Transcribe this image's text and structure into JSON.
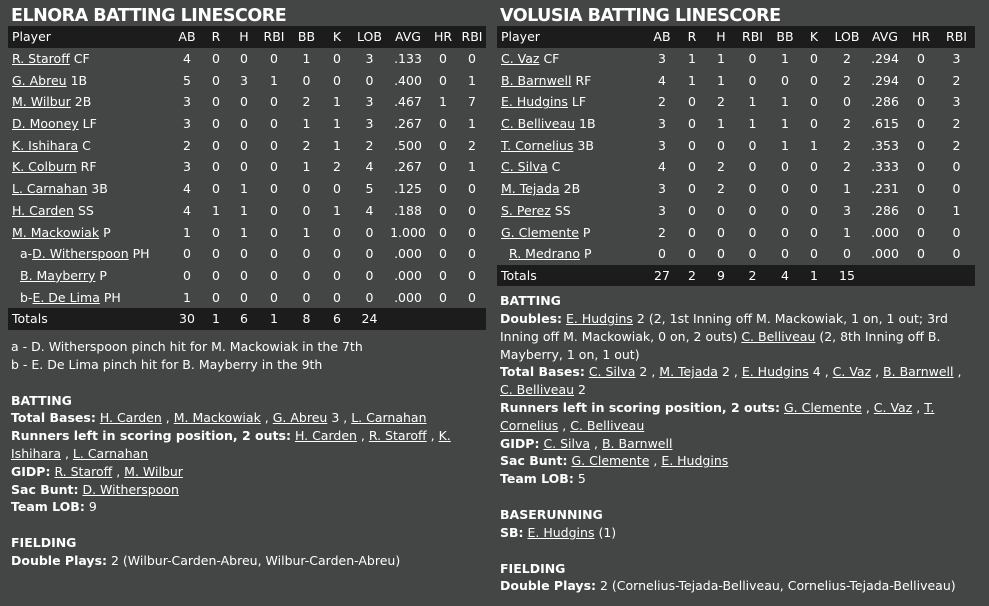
{
  "elnora": {
    "title": "ELNORA BATTING LINESCORE",
    "columns": [
      "Player",
      "AB",
      "R",
      "H",
      "RBI",
      "BB",
      "K",
      "LOB",
      "AVG",
      "HR",
      "RBI"
    ],
    "rows": [
      {
        "prefix": "",
        "name": "R. Staroff",
        "pos": " CF",
        "stats": [
          "4",
          "0",
          "0",
          "0",
          "1",
          "0",
          "3",
          ".133",
          "0",
          "0"
        ],
        "sub": false
      },
      {
        "prefix": "",
        "name": "G. Abreu",
        "pos": " 1B",
        "stats": [
          "5",
          "0",
          "3",
          "1",
          "0",
          "0",
          "0",
          ".400",
          "0",
          "1"
        ],
        "sub": false
      },
      {
        "prefix": "",
        "name": "M. Wilbur",
        "pos": " 2B",
        "stats": [
          "3",
          "0",
          "0",
          "0",
          "2",
          "1",
          "3",
          ".467",
          "1",
          "7"
        ],
        "sub": false
      },
      {
        "prefix": "",
        "name": "D. Mooney",
        "pos": " LF",
        "stats": [
          "3",
          "0",
          "0",
          "0",
          "1",
          "1",
          "3",
          ".267",
          "0",
          "1"
        ],
        "sub": false
      },
      {
        "prefix": "",
        "name": "K. Ishihara",
        "pos": " C",
        "stats": [
          "2",
          "0",
          "0",
          "0",
          "2",
          "1",
          "2",
          ".500",
          "0",
          "2"
        ],
        "sub": false
      },
      {
        "prefix": "",
        "name": "K. Colburn",
        "pos": " RF",
        "stats": [
          "3",
          "0",
          "0",
          "0",
          "1",
          "2",
          "4",
          ".267",
          "0",
          "1"
        ],
        "sub": false
      },
      {
        "prefix": "",
        "name": "L. Carnahan",
        "pos": " 3B",
        "stats": [
          "4",
          "0",
          "1",
          "0",
          "0",
          "0",
          "5",
          ".125",
          "0",
          "0"
        ],
        "sub": false
      },
      {
        "prefix": "",
        "name": "H. Carden",
        "pos": " SS",
        "stats": [
          "4",
          "1",
          "1",
          "0",
          "0",
          "1",
          "4",
          ".188",
          "0",
          "0"
        ],
        "sub": false
      },
      {
        "prefix": "",
        "name": "M. Mackowiak",
        "pos": " P",
        "stats": [
          "1",
          "0",
          "1",
          "0",
          "1",
          "0",
          "0",
          "1.000",
          "0",
          "0"
        ],
        "sub": false
      },
      {
        "prefix": "a-",
        "name": "D. Witherspoon",
        "pos": " PH",
        "stats": [
          "0",
          "0",
          "0",
          "0",
          "0",
          "0",
          "0",
          ".000",
          "0",
          "0"
        ],
        "sub": true
      },
      {
        "prefix": "",
        "name": "B. Mayberry",
        "pos": " P",
        "stats": [
          "0",
          "0",
          "0",
          "0",
          "0",
          "0",
          "0",
          ".000",
          "0",
          "0"
        ],
        "sub": true
      },
      {
        "prefix": "b-",
        "name": "E. De Lima",
        "pos": " PH",
        "stats": [
          "1",
          "0",
          "0",
          "0",
          "0",
          "0",
          "0",
          ".000",
          "0",
          "0"
        ],
        "sub": true
      }
    ],
    "totals": {
      "label": "Totals",
      "stats": [
        "30",
        "1",
        "6",
        "1",
        "8",
        "6",
        "24",
        "",
        "",
        ""
      ]
    },
    "notes": [
      "a - D. Witherspoon pinch hit for M. Mackowiak in the 7th",
      "b - E. De Lima pinch hit for B. Mayberry in the 9th"
    ],
    "batting": {
      "title": "BATTING",
      "total_bases_label": "Total Bases:",
      "tb1": "H. Carden",
      "tb2": "M. Mackowiak",
      "tb3": "G. Abreu",
      "tb3_count": " 3",
      "tb4": "L. Carnahan",
      "risp_label": "Runners left in scoring position, 2 outs:",
      "risp1": "H. Carden",
      "risp2": "R. Staroff",
      "risp3": "K. Ishihara",
      "risp4": "L. Carnahan",
      "gidp_label": "GIDP:",
      "gidp1": "R. Staroff",
      "gidp2": "M. Wilbur",
      "sac_label": "Sac Bunt:",
      "sac1": "D. Witherspoon",
      "lob_label": "Team LOB:",
      "lob_value": "9"
    },
    "fielding": {
      "title": "FIELDING",
      "dp_label": "Double Plays:",
      "dp_value": "2 (Wilbur-Carden-Abreu, Wilbur-Carden-Abreu)"
    }
  },
  "volusia": {
    "title": "VOLUSIA BATTING LINESCORE",
    "columns": [
      "Player",
      "AB",
      "R",
      "H",
      "RBI",
      "BB",
      "K",
      "LOB",
      "AVG",
      "HR",
      "RBI"
    ],
    "rows": [
      {
        "prefix": "",
        "name": "C. Vaz",
        "pos": " CF",
        "stats": [
          "3",
          "1",
          "1",
          "0",
          "1",
          "0",
          "2",
          ".294",
          "0",
          "3"
        ],
        "sub": false
      },
      {
        "prefix": "",
        "name": "B. Barnwell",
        "pos": " RF",
        "stats": [
          "4",
          "1",
          "1",
          "0",
          "0",
          "0",
          "2",
          ".294",
          "0",
          "2"
        ],
        "sub": false
      },
      {
        "prefix": "",
        "name": "E. Hudgins",
        "pos": " LF",
        "stats": [
          "2",
          "0",
          "2",
          "1",
          "1",
          "0",
          "0",
          ".286",
          "0",
          "3"
        ],
        "sub": false
      },
      {
        "prefix": "",
        "name": "C. Belliveau",
        "pos": " 1B",
        "stats": [
          "3",
          "0",
          "1",
          "1",
          "1",
          "0",
          "2",
          ".615",
          "0",
          "2"
        ],
        "sub": false
      },
      {
        "prefix": "",
        "name": "T. Cornelius",
        "pos": " 3B",
        "stats": [
          "3",
          "0",
          "0",
          "0",
          "1",
          "1",
          "2",
          ".353",
          "0",
          "2"
        ],
        "sub": false
      },
      {
        "prefix": "",
        "name": "C. Silva",
        "pos": " C",
        "stats": [
          "4",
          "0",
          "2",
          "0",
          "0",
          "0",
          "2",
          ".333",
          "0",
          "0"
        ],
        "sub": false
      },
      {
        "prefix": "",
        "name": "M. Tejada",
        "pos": " 2B",
        "stats": [
          "3",
          "0",
          "2",
          "0",
          "0",
          "0",
          "1",
          ".231",
          "0",
          "0"
        ],
        "sub": false
      },
      {
        "prefix": "",
        "name": "S. Perez",
        "pos": " SS",
        "stats": [
          "3",
          "0",
          "0",
          "0",
          "0",
          "0",
          "3",
          ".286",
          "0",
          "1"
        ],
        "sub": false
      },
      {
        "prefix": "",
        "name": "G. Clemente",
        "pos": " P",
        "stats": [
          "2",
          "0",
          "0",
          "0",
          "0",
          "0",
          "1",
          ".000",
          "0",
          "0"
        ],
        "sub": false
      },
      {
        "prefix": "",
        "name": "R. Medrano",
        "pos": " P",
        "stats": [
          "0",
          "0",
          "0",
          "0",
          "0",
          "0",
          "0",
          ".000",
          "0",
          "0"
        ],
        "sub": true
      }
    ],
    "totals": {
      "label": "Totals",
      "stats": [
        "27",
        "2",
        "9",
        "2",
        "4",
        "1",
        "15",
        "",
        "",
        ""
      ]
    },
    "batting": {
      "title": "BATTING",
      "doubles_label": "Doubles:",
      "d1": "E. Hudgins",
      "d1_detail": " 2 (2, 1st Inning off M. Mackowiak, 1 on, 1 out; 3rd Inning off M. Mackowiak, 0 on, 2 outs) ",
      "d2": "C. Belliveau",
      "d2_detail": " (2, 8th Inning off B. Mayberry, 1 on, 1 out)",
      "total_bases_label": "Total Bases:",
      "tb1": "C. Silva",
      "tb1_count": " 2",
      "tb2": "M. Tejada",
      "tb2_count": " 2",
      "tb3": "E. Hudgins",
      "tb3_count": " 4",
      "tb4": "C. Vaz",
      "tb5": "B. Barnwell",
      "tb6": "C. Belliveau",
      "tb6_count": " 2",
      "risp_label": "Runners left in scoring position, 2 outs:",
      "risp1": "G. Clemente",
      "risp2": "C. Vaz",
      "risp3": "T. Cornelius",
      "risp4": "C. Belliveau",
      "gidp_label": "GIDP:",
      "gidp1": "C. Silva",
      "gidp2": "B. Barnwell",
      "sac_label": "Sac Bunt:",
      "sac1": "G. Clemente",
      "sac2": "E. Hudgins",
      "lob_label": "Team LOB:",
      "lob_value": "5"
    },
    "baserunning": {
      "title": "BASERUNNING",
      "sb_label": "SB:",
      "sb1": "E. Hudgins",
      "sb1_detail": " (1)"
    },
    "fielding": {
      "title": "FIELDING",
      "dp_label": "Double Plays:",
      "dp_value": "2 (Cornelius-Tejada-Belliveau, Cornelius-Tejada-Belliveau)"
    }
  }
}
